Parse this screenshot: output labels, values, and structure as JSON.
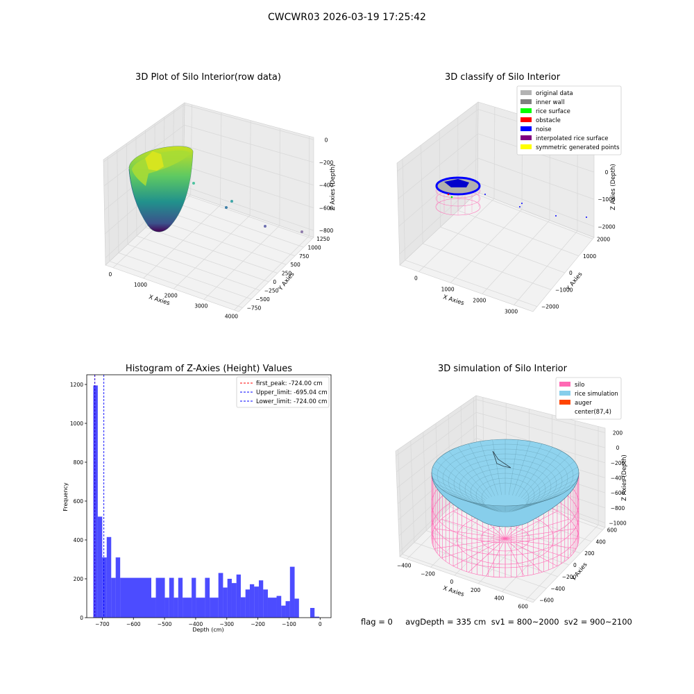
{
  "suptitle": "CWCWR03 2026-03-19 17:25:42",
  "panels": {
    "p1": {
      "title": "3D Plot of Silo Interior(row data)",
      "xlabel": "X Axies",
      "ylabel": "Y Axies",
      "zlabel": "Z Axies (Depth)",
      "xticks": [
        "0",
        "1000",
        "2000",
        "3000",
        "4000"
      ],
      "yticks": [
        "1250",
        "1000",
        "750",
        "500",
        "250",
        "0",
        "−250",
        "−500",
        "−750"
      ],
      "zticks": [
        "0",
        "−200",
        "−400",
        "−600",
        "−800"
      ]
    },
    "p2": {
      "title": "3D classify of Silo Interior",
      "xlabel": "X Axies",
      "ylabel": "Y Axies",
      "zlabel": "Z Axies (Depth)",
      "xticks": [
        "0",
        "1000",
        "2000",
        "3000"
      ],
      "yticks": [
        "2000",
        "1000",
        "0",
        "−1000",
        "−2000"
      ],
      "zticks": [
        "1000",
        "0",
        "−1000",
        "−2000"
      ],
      "legend": [
        {
          "label": "original data",
          "color": "#b3b3b3"
        },
        {
          "label": "inner wall",
          "color": "#808080"
        },
        {
          "label": "rice surface",
          "color": "#00ff00"
        },
        {
          "label": "obstacle",
          "color": "#ff0000"
        },
        {
          "label": "noise",
          "color": "#0000ff"
        },
        {
          "label": "interpolated rice surface",
          "color": "#800080"
        },
        {
          "label": "symmetric generated points",
          "color": "#ffff00"
        }
      ]
    },
    "p4": {
      "title": "3D simulation of Silo Interior",
      "xlabel": "X Axies",
      "ylabel": "Y Axies",
      "zlabel": "Z Axies (Depth)",
      "xticks": [
        "−400",
        "−200",
        "0",
        "200",
        "400",
        "600"
      ],
      "yticks": [
        "600",
        "400",
        "200",
        "0",
        "−200",
        "−400",
        "−600"
      ],
      "zticks": [
        "200",
        "0",
        "−200",
        "−400",
        "−600",
        "−800",
        "−1000"
      ],
      "legend": [
        {
          "label": "silo",
          "color": "#ff69b4"
        },
        {
          "label": "rice simulation",
          "color": "#87ceeb"
        },
        {
          "label": "auger",
          "color": "#ff4500"
        },
        {
          "label": "center(87,4)",
          "color": "#ffffff"
        }
      ]
    }
  },
  "flag_text": "flag = 0     avgDepth = 335 cm  sv1 = 800~2000  sv2 = 900~2100",
  "chart_data": {
    "type": "bar",
    "title": "Histogram of Z-Axies (Height) Values",
    "xlabel": "Depth (cm)",
    "ylabel": "Frequency",
    "xlim": [
      -750,
      35
    ],
    "ylim": [
      0,
      1250
    ],
    "xticks": [
      -700,
      -600,
      -500,
      -400,
      -300,
      -200,
      -100,
      0
    ],
    "yticks": [
      0,
      200,
      400,
      600,
      800,
      1000,
      1200
    ],
    "bar_color": "#0000ff",
    "bins": [
      {
        "x0": -729,
        "x1": -714.6,
        "value": 1195
      },
      {
        "x0": -714.6,
        "x1": -700.2,
        "value": 520
      },
      {
        "x0": -700.2,
        "x1": -685.8,
        "value": 310
      },
      {
        "x0": -685.8,
        "x1": -671.4,
        "value": 415
      },
      {
        "x0": -671.4,
        "x1": -657,
        "value": 205
      },
      {
        "x0": -657,
        "x1": -642.6,
        "value": 310
      },
      {
        "x0": -642.6,
        "x1": -542.6,
        "value": 205
      },
      {
        "x0": -542.6,
        "x1": -528,
        "value": 103
      },
      {
        "x0": -528,
        "x1": -499,
        "value": 205
      },
      {
        "x0": -499,
        "x1": -485,
        "value": 103
      },
      {
        "x0": -485,
        "x1": -470,
        "value": 205
      },
      {
        "x0": -470,
        "x1": -456,
        "value": 103
      },
      {
        "x0": -456,
        "x1": -442,
        "value": 205
      },
      {
        "x0": -442,
        "x1": -413,
        "value": 103
      },
      {
        "x0": -413,
        "x1": -399,
        "value": 205
      },
      {
        "x0": -399,
        "x1": -370,
        "value": 103
      },
      {
        "x0": -370,
        "x1": -355,
        "value": 205
      },
      {
        "x0": -355,
        "x1": -327,
        "value": 103
      },
      {
        "x0": -327,
        "x1": -312,
        "value": 230
      },
      {
        "x0": -312,
        "x1": -298,
        "value": 155
      },
      {
        "x0": -298,
        "x1": -284,
        "value": 200
      },
      {
        "x0": -284,
        "x1": -269,
        "value": 178
      },
      {
        "x0": -269,
        "x1": -255,
        "value": 222
      },
      {
        "x0": -255,
        "x1": -240,
        "value": 105
      },
      {
        "x0": -240,
        "x1": -226,
        "value": 145
      },
      {
        "x0": -226,
        "x1": -212,
        "value": 172
      },
      {
        "x0": -212,
        "x1": -197,
        "value": 160
      },
      {
        "x0": -197,
        "x1": -183,
        "value": 192
      },
      {
        "x0": -183,
        "x1": -168,
        "value": 145
      },
      {
        "x0": -168,
        "x1": -140,
        "value": 103
      },
      {
        "x0": -140,
        "x1": -125,
        "value": 112
      },
      {
        "x0": -125,
        "x1": -111,
        "value": 62
      },
      {
        "x0": -111,
        "x1": -97,
        "value": 85
      },
      {
        "x0": -97,
        "x1": -82,
        "value": 262
      },
      {
        "x0": -82,
        "x1": -68,
        "value": 98
      },
      {
        "x0": -32,
        "x1": -18,
        "value": 50
      },
      {
        "x0": -18,
        "x1": -3,
        "value": 5
      }
    ],
    "vlines": [
      {
        "x": -724.0,
        "color": "#ff0000",
        "label": "first_peak: -724.00 cm"
      },
      {
        "x": -695.04,
        "color": "#0000ff",
        "label": "Upper_limit: -695.04 cm"
      },
      {
        "x": -724.0,
        "color": "#0000ff",
        "label": "Lower_limit: -724.00 cm"
      }
    ],
    "legend_position": "top-right"
  }
}
